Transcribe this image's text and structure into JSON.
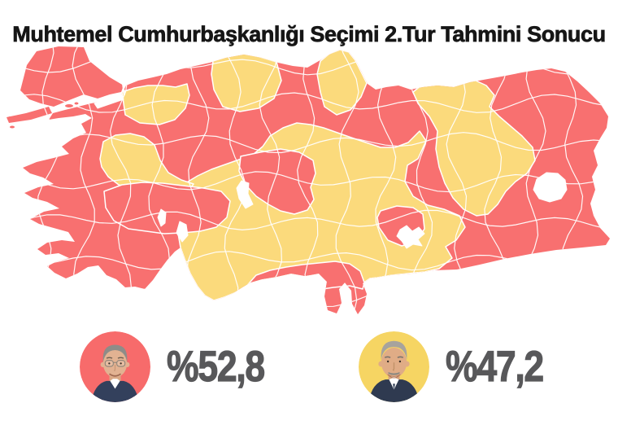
{
  "title": {
    "text": "Muhtemel Cumhurbaşkanlığı Seçimi 2.Tur Tahmini Sonucu"
  },
  "map": {
    "red_region_color": "#F87070",
    "yellow_region_color": "#FBDA7C",
    "border_color": "#FFFFFF",
    "water_color": "#FFFFFF"
  },
  "results": [
    {
      "label": "%52,8",
      "value": 52.8,
      "circle_color": "#F76B6B"
    },
    {
      "label": "%47,2",
      "value": 47.2,
      "circle_color": "#F6D563"
    }
  ],
  "text_colors": {
    "title": "#161616",
    "percent": "#58585A"
  },
  "chart_data": {
    "type": "choropleth-map",
    "title": "Muhtemel Cumhurbaşkanlığı Seçimi 2.Tur Tahmini Sonucu",
    "subject": "Turkey provinces shaded in two colors",
    "legend_position": "bottom",
    "series": [
      {
        "name": "red-candidate",
        "share_percent": 52.8,
        "color": "#F87070"
      },
      {
        "name": "yellow-candidate",
        "share_percent": 47.2,
        "color": "#FBDA7C"
      }
    ]
  }
}
